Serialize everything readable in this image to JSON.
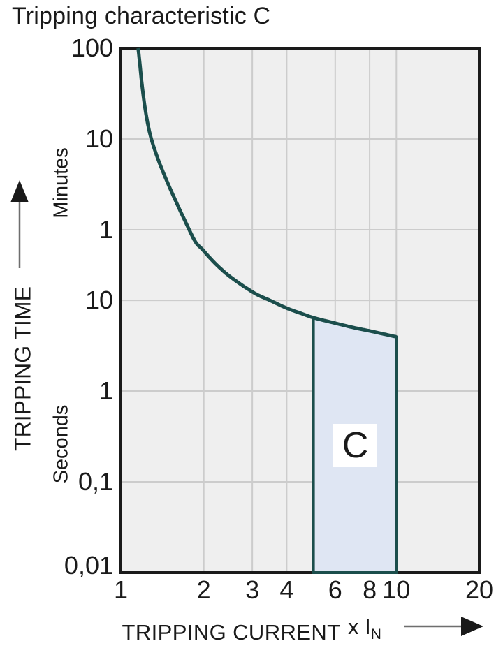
{
  "page": {
    "title": "Tripping characteristic C"
  },
  "chart_data": {
    "type": "line",
    "title": "Tripping characteristic C",
    "x_axis": {
      "label": "TRIPPING CURRENT",
      "unit_prefix": "x I",
      "unit_sub": "N",
      "scale": "log",
      "range": [
        1,
        20
      ],
      "ticks": [
        {
          "value": 1,
          "label": "1"
        },
        {
          "value": 2,
          "label": "2"
        },
        {
          "value": 3,
          "label": "3"
        },
        {
          "value": 4,
          "label": "4"
        },
        {
          "value": 6,
          "label": "6"
        },
        {
          "value": 8,
          "label": "8"
        },
        {
          "value": 10,
          "label": "10"
        },
        {
          "value": 20,
          "label": "20"
        }
      ]
    },
    "y_axis": {
      "label": "TRIPPING TIME",
      "scale": "log",
      "range_seconds": [
        6000,
        0.01
      ],
      "unit_sections": [
        {
          "name": "Minutes"
        },
        {
          "name": "Seconds"
        }
      ],
      "ticks": [
        {
          "seconds": 6000,
          "label": "100"
        },
        {
          "seconds": 600,
          "label": "10"
        },
        {
          "seconds": 60,
          "label": "1"
        },
        {
          "seconds": 10,
          "label": "10"
        },
        {
          "seconds": 1,
          "label": "1"
        },
        {
          "seconds": 0.1,
          "label": "0,1"
        },
        {
          "seconds": 0.01,
          "label": "0,01"
        }
      ]
    },
    "series": [
      {
        "name": "C tripping characteristic curve",
        "color": "#1b4e4c",
        "points": [
          [
            1.155,
            6000
          ],
          [
            1.29,
            600
          ],
          [
            1.77,
            60
          ],
          [
            2.0,
            35
          ],
          [
            2.4,
            20
          ],
          [
            3.0,
            12.4
          ],
          [
            3.5,
            9.9
          ],
          [
            4.0,
            8.2
          ],
          [
            4.5,
            7.2
          ],
          [
            5.0,
            6.44
          ],
          [
            6.0,
            5.6
          ],
          [
            7.0,
            5.0
          ],
          [
            8.0,
            4.6
          ],
          [
            9.0,
            4.25
          ],
          [
            10.0,
            3.96
          ]
        ]
      }
    ],
    "region": {
      "label": "C",
      "x_range": [
        5,
        10
      ],
      "bottom_seconds": 0.01,
      "fill": "#dfe6f3",
      "border": "#1b4e4c"
    },
    "grid": true,
    "legend": false,
    "colors": {
      "plot_bg": "#efefef",
      "grid": "#cccccc",
      "axis": "#1a1a1a",
      "text": "#1a1a1a",
      "arrow_shaft": "#6e6e6e",
      "arrow_head": "#1a1a1a"
    }
  }
}
